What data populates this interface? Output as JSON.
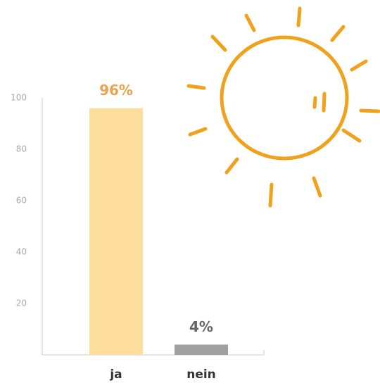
{
  "chart_data": {
    "type": "bar",
    "categories": [
      "ja",
      "nein"
    ],
    "values": [
      96,
      4
    ],
    "value_labels": [
      "96%",
      "4%"
    ],
    "colors": [
      "#fddd9c",
      "#a0a0a0"
    ],
    "label_colors": [
      "#e9a54e",
      "#666666"
    ],
    "ylim": [
      0,
      100
    ],
    "yticks": [
      20,
      40,
      60,
      80,
      100
    ]
  }
}
